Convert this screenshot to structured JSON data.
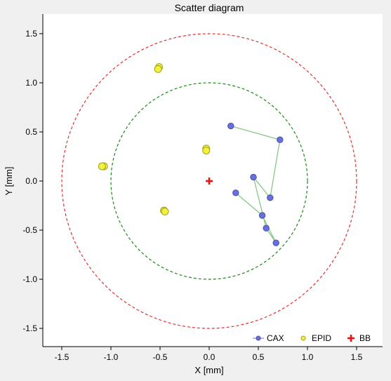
{
  "chart_data": {
    "type": "scatter",
    "title": "Scatter diagram",
    "xlabel": "X [mm]",
    "ylabel": "Y [mm]",
    "xlim": [
      -1.7,
      1.7
    ],
    "ylim": [
      -1.7,
      1.7
    ],
    "xticks": [
      -1.5,
      -1.0,
      -0.5,
      0.0,
      0.5,
      1.0,
      1.5
    ],
    "xtick_labels": [
      "-1.5",
      "-1.0",
      "-0.5",
      "0.0",
      "0.5",
      "1.0",
      "1.5"
    ],
    "yticks": [
      1.5,
      1.0,
      0.5,
      0.0,
      -0.5,
      -1.0,
      -1.5
    ],
    "ytick_labels": [
      "1.5",
      "1.0",
      "0.5",
      "0.0",
      "-0.5",
      "-1.0",
      "-1.5"
    ],
    "grid": false,
    "legend_position": "bottom-right",
    "circles": [
      {
        "radius": 1.0,
        "color": "#1a8a1a",
        "style": "dashed"
      },
      {
        "radius": 1.5,
        "color": "#e53030",
        "style": "dashed"
      }
    ],
    "series": [
      {
        "name": "CAX",
        "marker": "circle",
        "color": "#6670e0",
        "line_color": "#7cc47c",
        "connected": true,
        "points": [
          [
            0.22,
            0.56
          ],
          [
            0.72,
            0.42
          ],
          [
            0.62,
            -0.17
          ],
          [
            0.45,
            0.04
          ],
          [
            0.58,
            -0.48
          ],
          [
            0.68,
            -0.63
          ],
          [
            0.54,
            -0.35
          ],
          [
            0.27,
            -0.12
          ]
        ]
      },
      {
        "name": "EPID",
        "marker": "circle",
        "color": "#f2f23a",
        "connected": false,
        "points": [
          [
            -0.51,
            1.16
          ],
          [
            -0.52,
            1.14
          ],
          [
            -1.07,
            0.15
          ],
          [
            -1.09,
            0.15
          ],
          [
            -0.03,
            0.33
          ],
          [
            -0.03,
            0.31
          ],
          [
            -0.46,
            -0.3
          ],
          [
            -0.45,
            -0.31
          ]
        ]
      },
      {
        "name": "BB",
        "marker": "plus",
        "color": "#ee1111",
        "connected": false,
        "points": [
          [
            0.0,
            0.0
          ]
        ]
      }
    ]
  }
}
